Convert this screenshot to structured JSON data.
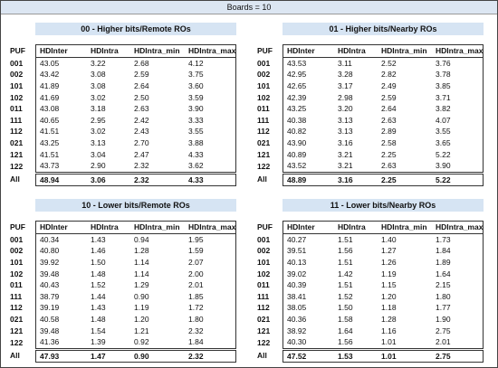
{
  "title": "Boards = 10",
  "panels": [
    {
      "title": "00 - Higher bits/Remote ROs",
      "columns": [
        "PUF",
        "HDInter",
        "HDIntra",
        "HDIntra_min",
        "HDIntra_max"
      ],
      "rows": [
        [
          "001",
          "43.05",
          "3.22",
          "2.68",
          "4.12"
        ],
        [
          "002",
          "43.42",
          "3.08",
          "2.59",
          "3.75"
        ],
        [
          "101",
          "41.89",
          "3.08",
          "2.64",
          "3.60"
        ],
        [
          "102",
          "41.69",
          "3.02",
          "2.50",
          "3.59"
        ],
        [
          "011",
          "43.08",
          "3.18",
          "2.63",
          "3.90"
        ],
        [
          "111",
          "40.65",
          "2.95",
          "2.42",
          "3.33"
        ],
        [
          "112",
          "41.51",
          "3.02",
          "2.43",
          "3.55"
        ],
        [
          "021",
          "43.25",
          "3.13",
          "2.70",
          "3.88"
        ],
        [
          "121",
          "41.51",
          "3.04",
          "2.47",
          "4.33"
        ],
        [
          "122",
          "43.73",
          "2.90",
          "2.32",
          "3.62"
        ]
      ],
      "total": [
        "All",
        "48.94",
        "3.06",
        "2.32",
        "4.33"
      ]
    },
    {
      "title": "01 - Higher bits/Nearby ROs",
      "columns": [
        "PUF",
        "HDInter",
        "HDIntra",
        "HDIntra_min",
        "HDIntra_max"
      ],
      "rows": [
        [
          "001",
          "43.53",
          "3.11",
          "2.52",
          "3.76"
        ],
        [
          "002",
          "42.95",
          "3.28",
          "2.82",
          "3.78"
        ],
        [
          "101",
          "42.65",
          "3.17",
          "2.49",
          "3.85"
        ],
        [
          "102",
          "42.39",
          "2.98",
          "2.59",
          "3.71"
        ],
        [
          "011",
          "43.25",
          "3.20",
          "2.64",
          "3.82"
        ],
        [
          "111",
          "40.38",
          "3.13",
          "2.63",
          "4.07"
        ],
        [
          "112",
          "40.82",
          "3.13",
          "2.89",
          "3.55"
        ],
        [
          "021",
          "43.90",
          "3.16",
          "2.58",
          "3.65"
        ],
        [
          "121",
          "40.89",
          "3.21",
          "2.25",
          "5.22"
        ],
        [
          "122",
          "43.52",
          "3.21",
          "2.63",
          "3.90"
        ]
      ],
      "total": [
        "All",
        "48.89",
        "3.16",
        "2.25",
        "5.22"
      ]
    },
    {
      "title": "10 - Lower bits/Remote ROs",
      "columns": [
        "PUF",
        "HDInter",
        "HDIntra",
        "HDIntra_min",
        "HDIntra_max"
      ],
      "rows": [
        [
          "001",
          "40.34",
          "1.43",
          "0.94",
          "1.95"
        ],
        [
          "002",
          "40.80",
          "1.46",
          "1.28",
          "1.59"
        ],
        [
          "101",
          "39.92",
          "1.50",
          "1.14",
          "2.07"
        ],
        [
          "102",
          "39.48",
          "1.48",
          "1.14",
          "2.00"
        ],
        [
          "011",
          "40.43",
          "1.52",
          "1.29",
          "2.01"
        ],
        [
          "111",
          "38.79",
          "1.44",
          "0.90",
          "1.85"
        ],
        [
          "112",
          "39.19",
          "1.43",
          "1.19",
          "1.72"
        ],
        [
          "021",
          "40.58",
          "1.48",
          "1.20",
          "1.80"
        ],
        [
          "121",
          "39.48",
          "1.54",
          "1.21",
          "2.32"
        ],
        [
          "122",
          "41.36",
          "1.39",
          "0.92",
          "1.84"
        ]
      ],
      "total": [
        "All",
        "47.93",
        "1.47",
        "0.90",
        "2.32"
      ]
    },
    {
      "title": "11 - Lower bits/Nearby ROs",
      "columns": [
        "PUF",
        "HDInter",
        "HDIntra",
        "HDIntra_min",
        "HDIntra_max"
      ],
      "rows": [
        [
          "001",
          "40.27",
          "1.51",
          "1.40",
          "1.73"
        ],
        [
          "002",
          "39.51",
          "1.56",
          "1.27",
          "1.84"
        ],
        [
          "101",
          "40.13",
          "1.51",
          "1.26",
          "1.89"
        ],
        [
          "102",
          "39.02",
          "1.42",
          "1.19",
          "1.64"
        ],
        [
          "011",
          "40.39",
          "1.51",
          "1.15",
          "2.15"
        ],
        [
          "111",
          "38.41",
          "1.52",
          "1.20",
          "1.80"
        ],
        [
          "112",
          "38.05",
          "1.50",
          "1.18",
          "1.77"
        ],
        [
          "021",
          "40.36",
          "1.58",
          "1.28",
          "1.90"
        ],
        [
          "121",
          "38.92",
          "1.64",
          "1.16",
          "2.75"
        ],
        [
          "122",
          "40.30",
          "1.56",
          "1.01",
          "2.01"
        ]
      ],
      "total": [
        "All",
        "47.52",
        "1.53",
        "1.01",
        "2.75"
      ]
    }
  ]
}
